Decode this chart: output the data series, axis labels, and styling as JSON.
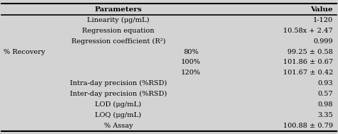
{
  "title_col1": "Parameters",
  "title_col2": "Value",
  "rows": [
    {
      "left": "Linearity (μg/mL)",
      "mid": "",
      "right": "1-120"
    },
    {
      "left": "Regression equation",
      "mid": "",
      "right": "10.58x + 2.47"
    },
    {
      "left": "Regression coefficient (R²)",
      "mid": "",
      "right": "0.999"
    },
    {
      "left": "% Recovery",
      "mid": "80%",
      "right": "99.25 ± 0.58"
    },
    {
      "left": "",
      "mid": "100%",
      "right": "101.86 ± 0.67"
    },
    {
      "left": "",
      "mid": "120%",
      "right": "101.67 ± 0.42"
    },
    {
      "left": "Intra-day precision (%RSD)",
      "mid": "",
      "right": "0.93"
    },
    {
      "left": "Inter-day precision (%RSD)",
      "mid": "",
      "right": "0.57"
    },
    {
      "left": "LOD (μg/mL)",
      "mid": "",
      "right": "0.98"
    },
    {
      "left": "LOQ (μg/mL)",
      "mid": "",
      "right": "3.35"
    },
    {
      "left": "% Assay",
      "mid": "",
      "right": "100.88 ± 0.79"
    }
  ],
  "bg_color": "#d3d3d3",
  "font_size": 7.0,
  "header_font_size": 7.5,
  "figwidth": 4.74,
  "figheight": 1.89,
  "dpi": 100
}
